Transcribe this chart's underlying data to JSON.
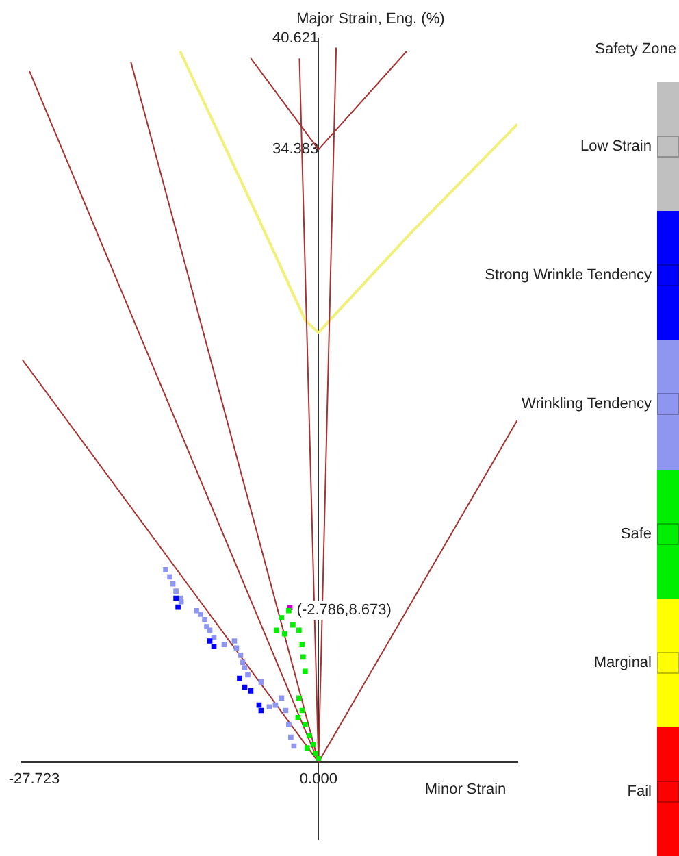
{
  "chart_data": {
    "type": "scatter",
    "ylabel": "Major Strain, Eng. (%)",
    "xlabel": "Minor Strain",
    "legend_title": "Safety Zone",
    "legend": "right",
    "marker": "square",
    "grid": false,
    "xlim": [
      -28.9,
      19.4
    ],
    "ylim": [
      -4.3,
      40.621
    ],
    "xticks": [
      -27.723,
      {
        "value": 0,
        "label": "0.000"
      }
    ],
    "yticks": [
      34.383,
      40.621
    ],
    "annotations": [
      {
        "text": "(-2.786,8.673)",
        "x": -2.786,
        "y": 8.673
      }
    ],
    "series": [
      {
        "name": "Low Strain",
        "color": "#c0c0c0"
      },
      {
        "name": "Strong Wrinkle Tendency",
        "color": "#0000ff",
        "x": [
          -13.9,
          -13.7,
          -10.6,
          -10.2,
          -7.7,
          -7.2,
          -6.6,
          -5.8,
          -5.6
        ],
        "values": [
          9.2,
          8.7,
          6.8,
          6.5,
          4.7,
          4.2,
          4.0,
          3.2,
          2.9
        ]
      },
      {
        "name": "Wrinkling Tendency",
        "color": "#8f96f0",
        "x": [
          -14.9,
          -14.5,
          -14.2,
          -13.9,
          -13.5,
          -13.4,
          -11.9,
          -11.5,
          -11.1,
          -10.9,
          -10.6,
          -10.2,
          -9.2,
          -8.2,
          -8.0,
          -7.6,
          -7.4,
          -7.2,
          -6.9,
          -5.6,
          -4.8,
          -4.2,
          -3.6,
          -3.2,
          -2.9,
          -2.7,
          -2.4
        ],
        "values": [
          10.8,
          10.4,
          10.0,
          9.6,
          9.2,
          9.0,
          8.5,
          8.3,
          8.0,
          7.6,
          7.4,
          7.0,
          6.6,
          6.8,
          6.4,
          6.0,
          5.6,
          5.3,
          4.9,
          4.5,
          3.1,
          3.2,
          3.6,
          2.9,
          2.1,
          1.4,
          0.9
        ]
      },
      {
        "name": "Safe",
        "color": "#00ee00",
        "x": [
          -4.1,
          -3.6,
          -2.9,
          -2.5,
          -1.9,
          -1.6,
          -1.5,
          -1.3,
          -3.3,
          -1.9,
          -1.6,
          -1.3,
          -0.9,
          -0.5,
          -0.3,
          0,
          -2.0,
          -1.1
        ],
        "values": [
          7.4,
          8.1,
          8.5,
          7.7,
          7.4,
          6.6,
          5.9,
          5.1,
          7.2,
          3.6,
          2.9,
          2.1,
          1.5,
          1.0,
          0.5,
          0.2,
          2.5,
          0.8
        ]
      },
      {
        "name": "Marginal",
        "color": "#ffff00"
      },
      {
        "name": "Fail",
        "color": "#ff0000"
      },
      {
        "color": "#cc00cc",
        "x": [
          -2.786
        ],
        "values": [
          8.673
        ]
      },
      {
        "type": "line",
        "marker": "none",
        "color": "#a83232",
        "x": [
          -28.9,
          0
        ],
        "values": [
          22.6,
          0
        ]
      },
      {
        "type": "line",
        "marker": "none",
        "color": "#a83232",
        "x": [
          -28.2,
          0
        ],
        "values": [
          38.8,
          0
        ]
      },
      {
        "type": "line",
        "marker": "none",
        "color": "#a83232",
        "x": [
          -18.3,
          0
        ],
        "values": [
          39.3,
          0
        ]
      },
      {
        "type": "line",
        "marker": "none",
        "color": "#a83232",
        "x": [
          -1.86,
          0
        ],
        "values": [
          39.5,
          0
        ]
      },
      {
        "type": "line",
        "marker": "none",
        "color": "#a83232",
        "x": [
          1.72,
          0
        ],
        "values": [
          40.1,
          0
        ]
      },
      {
        "type": "line",
        "marker": "none",
        "color": "#a83232",
        "x": [
          0,
          19.4
        ],
        "values": [
          0,
          19.2
        ]
      },
      {
        "type": "line",
        "marker": "none",
        "color": "#a83232",
        "x": [
          -6.6,
          0,
          8.6
        ],
        "values": [
          39.5,
          34.383,
          39.9
        ]
      },
      {
        "type": "line",
        "marker": "none",
        "color": "#f0f07a",
        "x": [
          -13.5,
          -6.0,
          -1.3,
          0,
          1.1,
          9.0,
          19.4
        ],
        "values": [
          39.9,
          30.7,
          24.8,
          24.1,
          24.8,
          29.7,
          35.8
        ]
      }
    ]
  }
}
